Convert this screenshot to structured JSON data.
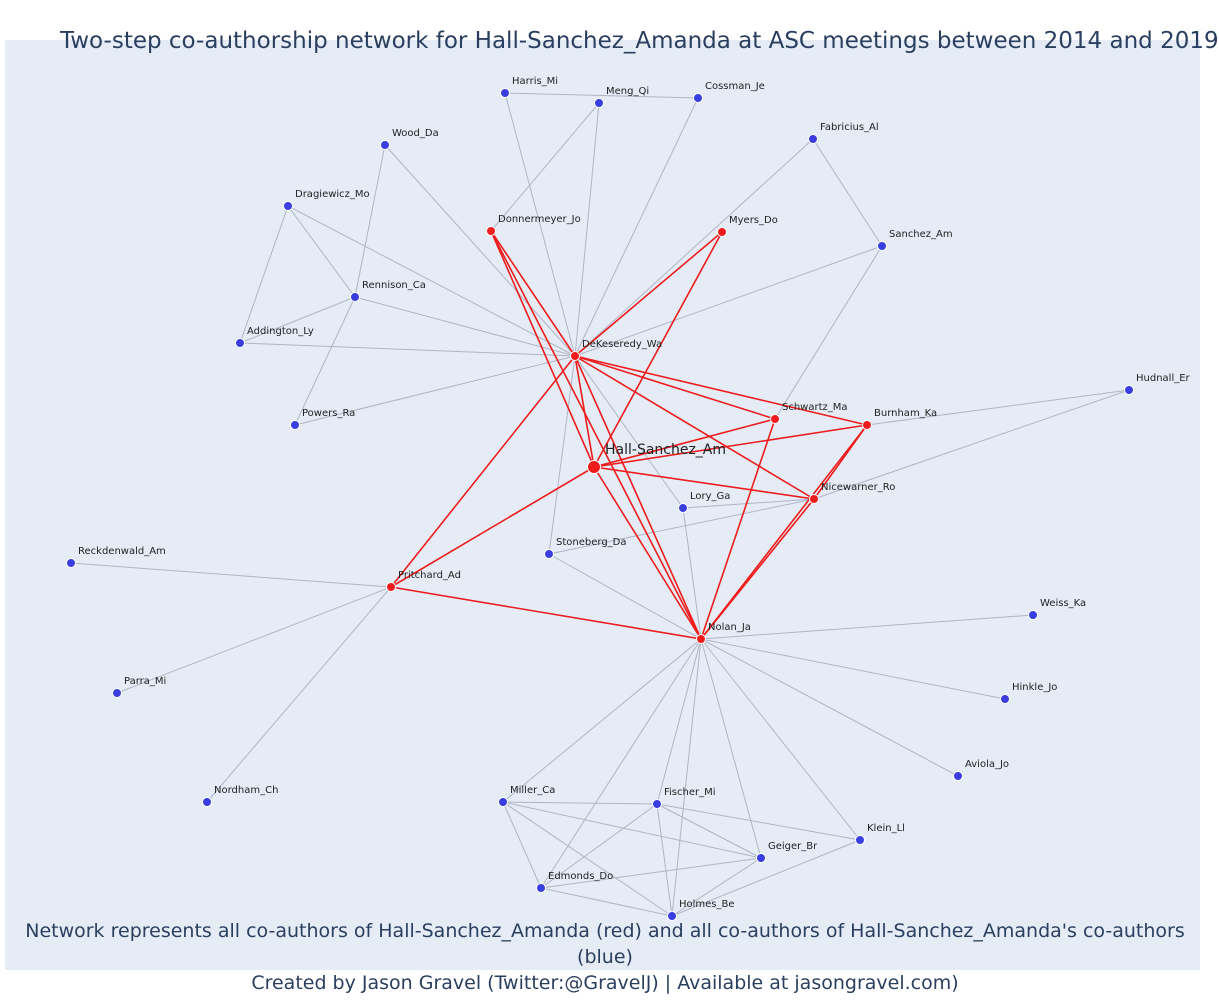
{
  "title": "Two-step co-authorship network for Hall-Sanchez_Amanda at ASC meetings between 2014 and 2019",
  "caption": {
    "line1": "Network represents all co-authors of Hall-Sanchez_Amanda (red) and all co-authors of Hall-Sanchez_Amanda's co-authors (blue)",
    "line2": "Created by Jason Gravel (Twitter:@GravelJ) | Available at jasongravel.com)"
  },
  "colors": {
    "red": "#ee1c1c",
    "blue": "#3a3de0",
    "grey_edge": "#b0b4c4",
    "background": "#e5ecf6"
  },
  "nodes": [
    {
      "id": "Hall-Sanchez_Am",
      "group": "focal"
    },
    {
      "id": "DeKeseredy_Wa",
      "group": "red"
    },
    {
      "id": "Donnermeyer_Jo",
      "group": "red"
    },
    {
      "id": "Myers_Do",
      "group": "red"
    },
    {
      "id": "Schwartz_Ma",
      "group": "red"
    },
    {
      "id": "Burnham_Ka",
      "group": "red"
    },
    {
      "id": "Nicewarner_Ro",
      "group": "red"
    },
    {
      "id": "Nolan_Ja",
      "group": "red"
    },
    {
      "id": "Pritchard_Ad",
      "group": "red"
    },
    {
      "id": "Harris_Mi",
      "group": "blue"
    },
    {
      "id": "Meng_Qi",
      "group": "blue"
    },
    {
      "id": "Cossman_Je",
      "group": "blue"
    },
    {
      "id": "Wood_Da",
      "group": "blue"
    },
    {
      "id": "Fabricius_Al",
      "group": "blue"
    },
    {
      "id": "Dragiewicz_Mo",
      "group": "blue"
    },
    {
      "id": "Sanchez_Am",
      "group": "blue"
    },
    {
      "id": "Rennison_Ca",
      "group": "blue"
    },
    {
      "id": "Addington_Ly",
      "group": "blue"
    },
    {
      "id": "Powers_Ra",
      "group": "blue"
    },
    {
      "id": "Hudnall_Er",
      "group": "blue"
    },
    {
      "id": "Lory_Ga",
      "group": "blue"
    },
    {
      "id": "Stoneberg_Da",
      "group": "blue"
    },
    {
      "id": "Reckdenwald_Am",
      "group": "blue"
    },
    {
      "id": "Weiss_Ka",
      "group": "blue"
    },
    {
      "id": "Parra_Mi",
      "group": "blue"
    },
    {
      "id": "Hinkle_Jo",
      "group": "blue"
    },
    {
      "id": "Aviola_Jo",
      "group": "blue"
    },
    {
      "id": "Nordham_Ch",
      "group": "blue"
    },
    {
      "id": "Miller_Ca",
      "group": "blue"
    },
    {
      "id": "Fischer_Mi",
      "group": "blue"
    },
    {
      "id": "Klein_Ll",
      "group": "blue"
    },
    {
      "id": "Geiger_Br",
      "group": "blue"
    },
    {
      "id": "Edmonds_Do",
      "group": "blue"
    },
    {
      "id": "Holmes_Be",
      "group": "blue"
    }
  ],
  "edges": [
    [
      "DeKeseredy_Wa",
      "Hall-Sanchez_Am",
      "red"
    ],
    [
      "DeKeseredy_Wa",
      "Donnermeyer_Jo",
      "red"
    ],
    [
      "DeKeseredy_Wa",
      "Myers_Do",
      "red"
    ],
    [
      "DeKeseredy_Wa",
      "Schwartz_Ma",
      "red"
    ],
    [
      "DeKeseredy_Wa",
      "Burnham_Ka",
      "red"
    ],
    [
      "DeKeseredy_Wa",
      "Nicewarner_Ro",
      "red"
    ],
    [
      "DeKeseredy_Wa",
      "Nolan_Ja",
      "red"
    ],
    [
      "DeKeseredy_Wa",
      "Pritchard_Ad",
      "red"
    ],
    [
      "Hall-Sanchez_Am",
      "Donnermeyer_Jo",
      "red"
    ],
    [
      "Hall-Sanchez_Am",
      "Myers_Do",
      "red"
    ],
    [
      "Hall-Sanchez_Am",
      "Schwartz_Ma",
      "red"
    ],
    [
      "Hall-Sanchez_Am",
      "Burnham_Ka",
      "red"
    ],
    [
      "Hall-Sanchez_Am",
      "Nicewarner_Ro",
      "red"
    ],
    [
      "Hall-Sanchez_Am",
      "Nolan_Ja",
      "red"
    ],
    [
      "Hall-Sanchez_Am",
      "Pritchard_Ad",
      "red"
    ],
    [
      "Donnermeyer_Jo",
      "Nolan_Ja",
      "red"
    ],
    [
      "Schwartz_Ma",
      "Nolan_Ja",
      "red"
    ],
    [
      "Burnham_Ka",
      "Nolan_Ja",
      "red"
    ],
    [
      "Burnham_Ka",
      "Nicewarner_Ro",
      "red"
    ],
    [
      "Nicewarner_Ro",
      "Nolan_Ja",
      "red"
    ],
    [
      "Pritchard_Ad",
      "Nolan_Ja",
      "red"
    ],
    [
      "Harris_Mi",
      "Cossman_Je",
      "grey"
    ],
    [
      "Harris_Mi",
      "DeKeseredy_Wa",
      "grey"
    ],
    [
      "Meng_Qi",
      "Donnermeyer_Jo",
      "grey"
    ],
    [
      "Meng_Qi",
      "DeKeseredy_Wa",
      "grey"
    ],
    [
      "Cossman_Je",
      "DeKeseredy_Wa",
      "grey"
    ],
    [
      "Wood_Da",
      "Rennison_Ca",
      "grey"
    ],
    [
      "Wood_Da",
      "DeKeseredy_Wa",
      "grey"
    ],
    [
      "Fabricius_Al",
      "Sanchez_Am",
      "grey"
    ],
    [
      "Fabricius_Al",
      "DeKeseredy_Wa",
      "grey"
    ],
    [
      "Sanchez_Am",
      "DeKeseredy_Wa",
      "grey"
    ],
    [
      "Sanchez_Am",
      "Schwartz_Ma",
      "grey"
    ],
    [
      "Dragiewicz_Mo",
      "Rennison_Ca",
      "grey"
    ],
    [
      "Dragiewicz_Mo",
      "Addington_Ly",
      "grey"
    ],
    [
      "Dragiewicz_Mo",
      "DeKeseredy_Wa",
      "grey"
    ],
    [
      "Rennison_Ca",
      "Addington_Ly",
      "grey"
    ],
    [
      "Rennison_Ca",
      "Powers_Ra",
      "grey"
    ],
    [
      "Rennison_Ca",
      "DeKeseredy_Wa",
      "grey"
    ],
    [
      "Addington_Ly",
      "DeKeseredy_Wa",
      "grey"
    ],
    [
      "Powers_Ra",
      "DeKeseredy_Wa",
      "grey"
    ],
    [
      "DeKeseredy_Wa",
      "Lory_Ga",
      "grey"
    ],
    [
      "DeKeseredy_Wa",
      "Stoneberg_Da",
      "grey"
    ],
    [
      "Hudnall_Er",
      "Burnham_Ka",
      "grey"
    ],
    [
      "Hudnall_Er",
      "Nicewarner_Ro",
      "grey"
    ],
    [
      "Lory_Ga",
      "Nicewarner_Ro",
      "grey"
    ],
    [
      "Lory_Ga",
      "Nolan_Ja",
      "grey"
    ],
    [
      "Stoneberg_Da",
      "Nicewarner_Ro",
      "grey"
    ],
    [
      "Stoneberg_Da",
      "Nolan_Ja",
      "grey"
    ],
    [
      "Reckdenwald_Am",
      "Pritchard_Ad",
      "grey"
    ],
    [
      "Parra_Mi",
      "Pritchard_Ad",
      "grey"
    ],
    [
      "Nordham_Ch",
      "Pritchard_Ad",
      "grey"
    ],
    [
      "Nolan_Ja",
      "Weiss_Ka",
      "grey"
    ],
    [
      "Nolan_Ja",
      "Hinkle_Jo",
      "grey"
    ],
    [
      "Nolan_Ja",
      "Aviola_Jo",
      "grey"
    ],
    [
      "Nolan_Ja",
      "Klein_Ll",
      "grey"
    ],
    [
      "Nolan_Ja",
      "Miller_Ca",
      "grey"
    ],
    [
      "Nolan_Ja",
      "Fischer_Mi",
      "grey"
    ],
    [
      "Nolan_Ja",
      "Geiger_Br",
      "grey"
    ],
    [
      "Nolan_Ja",
      "Edmonds_Do",
      "grey"
    ],
    [
      "Nolan_Ja",
      "Holmes_Be",
      "grey"
    ],
    [
      "Miller_Ca",
      "Fischer_Mi",
      "grey"
    ],
    [
      "Miller_Ca",
      "Geiger_Br",
      "grey"
    ],
    [
      "Miller_Ca",
      "Edmonds_Do",
      "grey"
    ],
    [
      "Miller_Ca",
      "Holmes_Be",
      "grey"
    ],
    [
      "Fischer_Mi",
      "Klein_Ll",
      "grey"
    ],
    [
      "Fischer_Mi",
      "Geiger_Br",
      "grey"
    ],
    [
      "Fischer_Mi",
      "Edmonds_Do",
      "grey"
    ],
    [
      "Fischer_Mi",
      "Holmes_Be",
      "grey"
    ],
    [
      "Klein_Ll",
      "Holmes_Be",
      "grey"
    ],
    [
      "Geiger_Br",
      "Edmonds_Do",
      "grey"
    ],
    [
      "Geiger_Br",
      "Holmes_Be",
      "grey"
    ],
    [
      "Edmonds_Do",
      "Holmes_Be",
      "grey"
    ]
  ]
}
